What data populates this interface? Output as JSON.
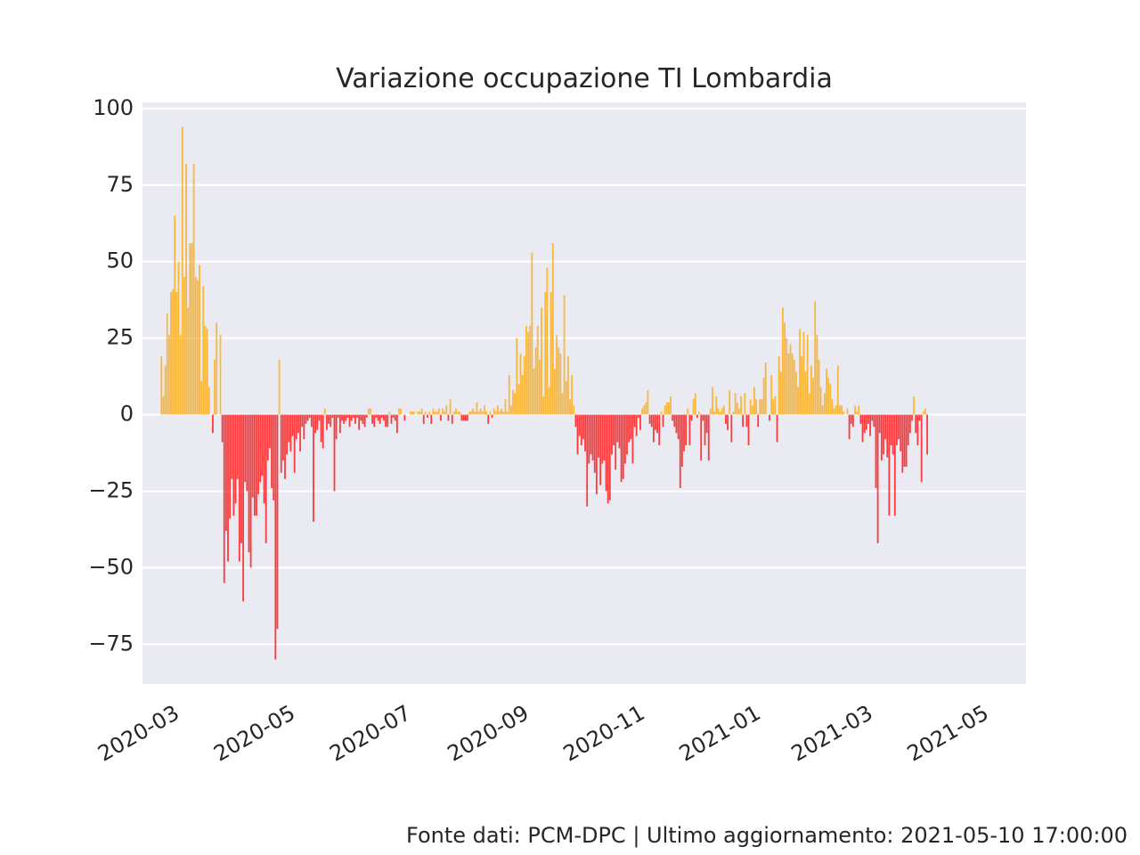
{
  "chart_data": {
    "type": "bar",
    "title": "Variazione occupazione TI Lombardia",
    "xlabel": "",
    "ylabel": "",
    "x_type": "date",
    "xlim": [
      "2020-02-14",
      "2021-05-24"
    ],
    "ylim": [
      -88,
      102
    ],
    "yticks": [
      100,
      75,
      50,
      25,
      0,
      -25,
      -50,
      -75
    ],
    "ytick_labels": [
      "100",
      "75",
      "50",
      "25",
      "0",
      "−25",
      "−50",
      "−75"
    ],
    "xticks": [
      "2020-03-01",
      "2020-05-01",
      "2020-07-01",
      "2020-09-01",
      "2020-11-01",
      "2021-01-01",
      "2021-03-01",
      "2021-05-01"
    ],
    "xtick_labels": [
      "2020-03",
      "2020-05",
      "2020-07",
      "2020-09",
      "2020-11",
      "2021-01",
      "2021-03",
      "2021-05"
    ],
    "grid": true,
    "colors": {
      "positive": "#ffa500",
      "negative": "#ff0000",
      "background": "#eaeaf2",
      "grid": "#ffffff"
    },
    "series": [
      {
        "start": "2020-02-24",
        "values": [
          19,
          6,
          16,
          33,
          26,
          40,
          41,
          65,
          40,
          50,
          26,
          94,
          45,
          82,
          35,
          56,
          56,
          82,
          45,
          44,
          49,
          11,
          42,
          29,
          28,
          9,
          0,
          -6,
          18,
          30,
          0,
          26,
          -9,
          -55,
          -38,
          -48,
          -34,
          -21,
          -33,
          -29,
          -21,
          -48,
          -42,
          -61,
          -22,
          -25,
          -45,
          -50,
          -27,
          -33,
          -33,
          -26,
          -22,
          -20,
          -29,
          -42,
          -15,
          -11,
          -24,
          -28,
          -80,
          -70,
          18,
          -19,
          -15,
          -21,
          -13,
          -9,
          -12,
          -7,
          -19,
          -8,
          -6,
          -12,
          -4,
          -8,
          -3,
          -2,
          -1,
          -4,
          -35,
          -6,
          -5,
          -2,
          -9,
          -11,
          2,
          -5,
          -3,
          -4,
          -1,
          -25,
          -8,
          -1,
          -6,
          -2,
          -3,
          -2,
          -1,
          -4,
          -2,
          -1,
          -3,
          -1,
          -5,
          -2,
          -3,
          -4,
          -1,
          2,
          2,
          -3,
          -4,
          -1,
          -2,
          -3,
          -1,
          -2,
          -4,
          -4,
          1,
          -3,
          -1,
          -2,
          -6,
          2,
          2,
          0,
          -2,
          0,
          0,
          1,
          1,
          1,
          0,
          1,
          1,
          2,
          -3,
          1,
          -1,
          1,
          -3,
          2,
          1,
          1,
          2,
          -2,
          2,
          1,
          3,
          -2,
          5,
          -3,
          1,
          2,
          1,
          1,
          -2,
          -2,
          -2,
          -2,
          1,
          1,
          2,
          1,
          4,
          1,
          2,
          1,
          3,
          1,
          -3,
          1,
          -1,
          2,
          1,
          3,
          1,
          2,
          1,
          5,
          1,
          13,
          3,
          8,
          7,
          25,
          10,
          20,
          13,
          19,
          29,
          27,
          29,
          53,
          15,
          22,
          29,
          18,
          35,
          6,
          40,
          48,
          9,
          40,
          56,
          15,
          26,
          22,
          20,
          7,
          39,
          11,
          19,
          5,
          13,
          3,
          -4,
          -13,
          -7,
          -10,
          -8,
          -12,
          -30,
          -16,
          -13,
          -15,
          -19,
          -26,
          -14,
          -23,
          -16,
          -15,
          -25,
          -29,
          -28,
          -13,
          -10,
          -18,
          -9,
          -11,
          -22,
          -21,
          -16,
          -13,
          -9,
          -8,
          -16,
          -4,
          -7,
          -1,
          -5,
          2,
          3,
          4,
          8,
          -3,
          -4,
          -9,
          -5,
          -6,
          -10,
          1,
          -4,
          3,
          4,
          4,
          6,
          -2,
          -4,
          -6,
          -8,
          -24,
          -17,
          -12,
          -10,
          2,
          -10,
          -2,
          5,
          7,
          -1,
          1,
          -15,
          -2,
          -10,
          -6,
          -15,
          2,
          9,
          1,
          6,
          2,
          1,
          2,
          3,
          -3,
          -5,
          8,
          -9,
          1,
          7,
          4,
          2,
          6,
          -4,
          7,
          -4,
          -10,
          5,
          3,
          9,
          5,
          -4,
          5,
          5,
          12,
          17,
          0,
          -2,
          13,
          5,
          6,
          -9,
          19,
          14,
          35,
          30,
          25,
          20,
          23,
          20,
          18,
          14,
          9,
          28,
          19,
          27,
          14,
          26,
          7,
          16,
          12,
          37,
          26,
          18,
          9,
          3,
          7,
          15,
          12,
          10,
          5,
          2,
          3,
          16,
          3,
          3,
          1,
          0,
          2,
          -8,
          -3,
          -4,
          3,
          1,
          3,
          -3,
          -9,
          -6,
          -5,
          -3,
          -7,
          -2,
          -4,
          -24,
          -42,
          -6,
          -15,
          -13,
          -8,
          -14,
          -33,
          -10,
          -13,
          -33,
          -10,
          -8,
          -12,
          -19,
          -17,
          -17,
          -10,
          -6,
          -2,
          6,
          -6,
          -10,
          -2,
          -22,
          1,
          2,
          -13
        ]
      }
    ]
  },
  "footer": "Fonte dati: PCM-DPC | Ultimo aggiornamento: 2021-05-10 17:00:00"
}
